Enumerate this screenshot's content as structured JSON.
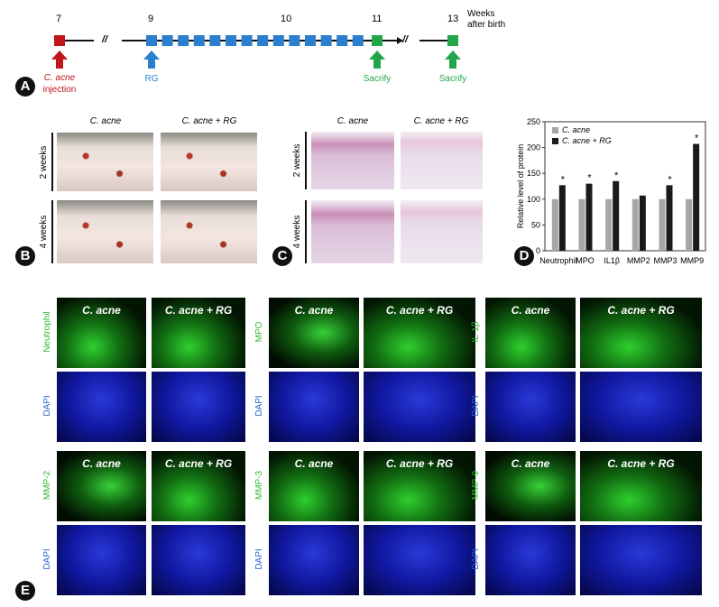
{
  "panel_labels": [
    "A",
    "B",
    "C",
    "D",
    "E"
  ],
  "panel_a": {
    "weeks": [
      "7",
      "9",
      "10",
      "11",
      "13"
    ],
    "axis_label": "Weeks after birth",
    "break_mark": "//",
    "injection": {
      "organism": "C. acne",
      "text": "injection"
    },
    "treatment": "RG",
    "sacrifice": "Sacrify"
  },
  "panel_b": {
    "columns": [
      "C. acne",
      "C. acne + RG"
    ],
    "rows": [
      "2 weeks",
      "4 weeks"
    ]
  },
  "panel_c": {
    "columns": [
      "C. acne",
      "C. acne + RG"
    ],
    "rows": [
      "2 weeks",
      "4 weeks"
    ]
  },
  "chart_data": {
    "type": "bar",
    "y_label": "Relative level of protein",
    "categories": [
      "Neutrophil",
      "MPO",
      "IL1β",
      "MMP2",
      "MMP3",
      "MMP9"
    ],
    "series": [
      {
        "name": "C. acne",
        "color": "#a6a6a6",
        "values": [
          100,
          100,
          100,
          100,
          100,
          100
        ]
      },
      {
        "name": "C. acne + RG",
        "color": "#1a1a1a",
        "values": [
          127,
          130,
          135,
          107,
          127,
          207
        ],
        "value_labels": [
          "*",
          "*",
          "*",
          null,
          "*",
          "*"
        ]
      }
    ],
    "ylim": [
      0,
      250
    ],
    "yticks": [
      0,
      50,
      100,
      150,
      200,
      250
    ],
    "legend": "top-left"
  },
  "panel_e": {
    "columns": [
      "C. acne",
      "C. acne + RG"
    ],
    "counterstain": "DAPI",
    "markers": [
      "Neutrophil",
      "MPO",
      "IL-1β",
      "MMP-2",
      "MMP-3",
      "MMP-9"
    ]
  }
}
